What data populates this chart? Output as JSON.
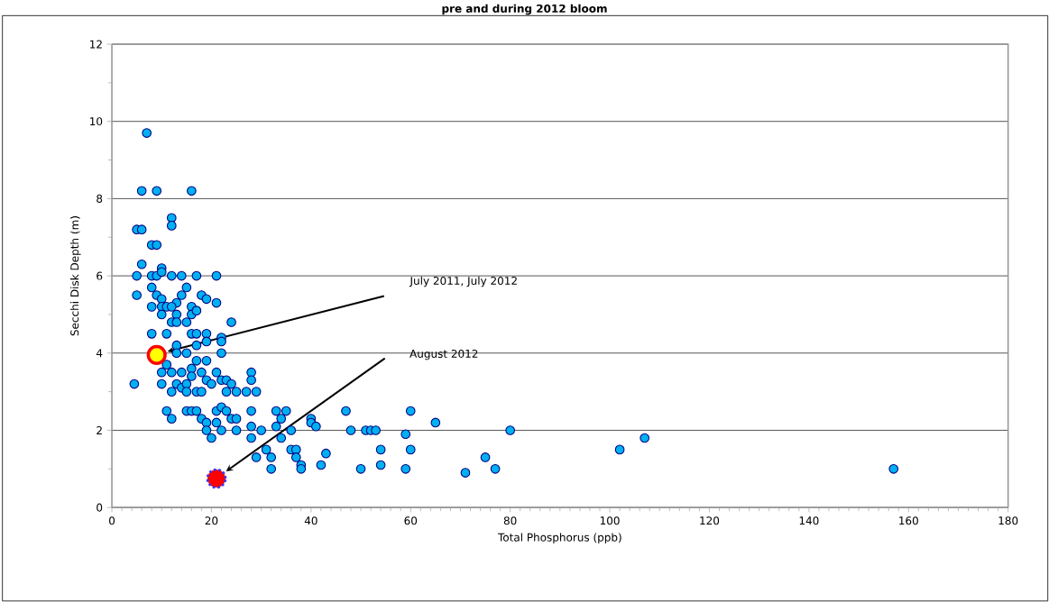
{
  "chart_data": {
    "type": "scatter",
    "title": "pre and during 2012 bloom",
    "xlabel": "Total Phosphorus (ppb)",
    "ylabel": "Secchi Disk Depth (m)",
    "xlim": [
      0,
      180
    ],
    "xticks": [
      0,
      20,
      40,
      60,
      80,
      100,
      120,
      140,
      160,
      180
    ],
    "ylim": [
      0,
      12
    ],
    "yticks": [
      0,
      2,
      4,
      6,
      8,
      10,
      12
    ],
    "grid": "y",
    "series": [
      {
        "color": "#00b0f0",
        "x": [
          7,
          6,
          9,
          16,
          12,
          12,
          5,
          6,
          8,
          9,
          6,
          5,
          8,
          9,
          10,
          10,
          12,
          14,
          17,
          21,
          5,
          8,
          9,
          10,
          13,
          14,
          15,
          16,
          18,
          19,
          21,
          8,
          10,
          11,
          12,
          10,
          13,
          16,
          12,
          13,
          15,
          17,
          24,
          8,
          11,
          13,
          16,
          17,
          19,
          19,
          22,
          22,
          17,
          15,
          13,
          22,
          11,
          10,
          12,
          14,
          16,
          18,
          21,
          22,
          23,
          24,
          28,
          28,
          4.5,
          10,
          13,
          14,
          15,
          16,
          17,
          18,
          12,
          15,
          19,
          17,
          19,
          20,
          23,
          25,
          27,
          29,
          11,
          12,
          15,
          16,
          17,
          18,
          19,
          21,
          22,
          23,
          24,
          25,
          21,
          28,
          19,
          20,
          22,
          25,
          28,
          28,
          29,
          30,
          31,
          32,
          32,
          33,
          33,
          34,
          34,
          35,
          36,
          36,
          37,
          37,
          38,
          38,
          40,
          40,
          41,
          42,
          43,
          47,
          48,
          50,
          51,
          52,
          53,
          54,
          54,
          59,
          59,
          60,
          60,
          65,
          71,
          75,
          77,
          80,
          102,
          107,
          157
        ],
        "values": [
          9.7,
          8.2,
          8.2,
          8.2,
          7.5,
          7.3,
          7.2,
          7.2,
          6.8,
          6.8,
          6.3,
          6.0,
          6.0,
          6.0,
          6.2,
          6.1,
          6.0,
          6.0,
          6.0,
          6.0,
          5.5,
          5.7,
          5.5,
          5.4,
          5.3,
          5.5,
          5.7,
          5.2,
          5.5,
          5.4,
          5.3,
          5.2,
          5.2,
          5.2,
          5.2,
          5.0,
          5.0,
          5.0,
          4.8,
          4.8,
          4.8,
          5.1,
          4.8,
          4.5,
          4.5,
          4.2,
          4.5,
          4.5,
          4.5,
          4.3,
          4.4,
          4.3,
          4.2,
          4.0,
          4.0,
          4.0,
          3.7,
          3.5,
          3.5,
          3.5,
          3.6,
          3.5,
          3.5,
          3.3,
          3.3,
          3.2,
          3.5,
          3.3,
          3.2,
          3.2,
          3.2,
          3.1,
          3.2,
          3.4,
          3.0,
          3.0,
          3.0,
          3.0,
          3.8,
          3.8,
          3.3,
          3.2,
          3.0,
          3.0,
          3.0,
          3.0,
          2.5,
          2.3,
          2.5,
          2.5,
          2.5,
          2.3,
          2.2,
          2.5,
          2.6,
          2.5,
          2.3,
          2.3,
          2.2,
          2.5,
          2.0,
          1.8,
          2.0,
          2.0,
          2.1,
          1.8,
          1.3,
          2.0,
          1.5,
          1.3,
          1.0,
          2.5,
          2.1,
          2.3,
          1.8,
          2.5,
          2.0,
          1.5,
          1.5,
          1.3,
          1.1,
          1.0,
          2.3,
          2.2,
          2.1,
          1.1,
          1.4,
          2.5,
          2.0,
          1.0,
          2.0,
          2.0,
          2.0,
          1.5,
          1.1,
          1.9,
          1.0,
          2.5,
          1.5,
          2.2,
          0.9,
          1.3,
          1.0,
          2.0,
          1.5,
          1.8,
          1.0
        ]
      },
      {
        "color": "#ffff00",
        "x": [
          9
        ],
        "values": [
          3.95
        ]
      },
      {
        "color": "#ff0000",
        "x": [
          21
        ],
        "values": [
          0.75
        ]
      }
    ],
    "annotations": [
      "July 2011, July 2012",
      "August 2012"
    ]
  }
}
